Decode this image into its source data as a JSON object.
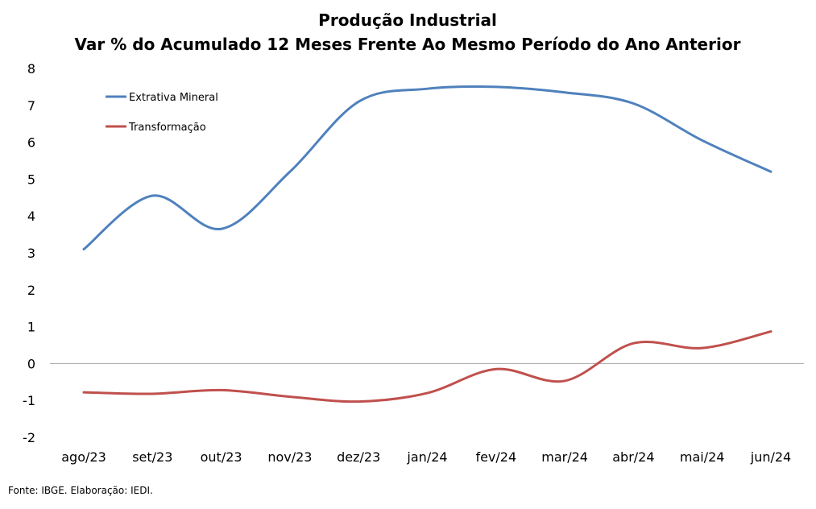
{
  "chart_data": {
    "type": "line",
    "title": "Produção Industrial",
    "subtitle": "Var % do Acumulado 12 Meses Frente Ao Mesmo Período do Ano Anterior",
    "categories": [
      "ago/23",
      "set/23",
      "out/23",
      "nov/23",
      "dez/23",
      "jan/24",
      "fev/24",
      "mar/24",
      "abr/24",
      "mai/24",
      "jun/24"
    ],
    "series": [
      {
        "name": "Extrativa Mineral",
        "color": "#4F81BD",
        "values": [
          3.1,
          4.55,
          3.65,
          5.2,
          7.1,
          7.45,
          7.5,
          7.35,
          7.05,
          6.05,
          5.2
        ]
      },
      {
        "name": "Transformação",
        "color": "#C0504D",
        "values": [
          -0.78,
          -0.82,
          -0.72,
          -0.9,
          -1.03,
          -0.8,
          -0.15,
          -0.47,
          0.55,
          0.42,
          0.87
        ]
      }
    ],
    "ylim": [
      -2,
      8
    ],
    "yticks": [
      "-2",
      "-1",
      "0",
      "1",
      "2",
      "3",
      "4",
      "5",
      "6",
      "7",
      "8"
    ],
    "grid": false,
    "legend": "top-left",
    "source": "Fonte: IBGE. Elaboração: IEDI."
  }
}
